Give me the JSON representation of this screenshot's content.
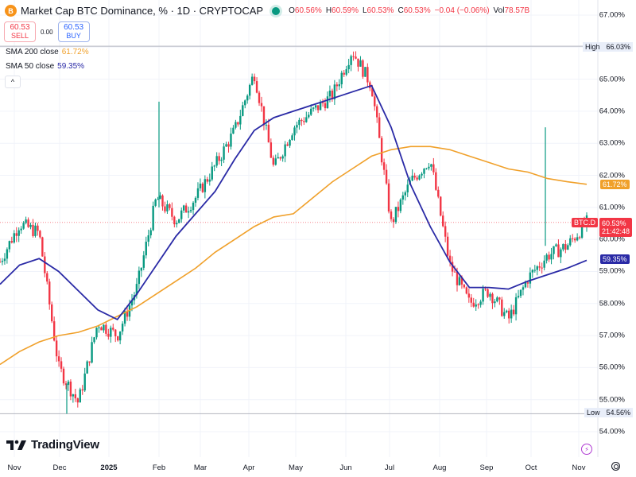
{
  "header": {
    "symbol_icon": "B",
    "title": "Market Cap BTC Dominance, % · 1D · CRYPTOCAP",
    "ohlc": {
      "o_label": "O",
      "o": "60.56%",
      "h_label": "H",
      "h": "60.59%",
      "l_label": "L",
      "l": "60.53%",
      "c_label": "C",
      "c": "60.53%",
      "change": "−0.04 (−0.06%)",
      "vol_label": "Vol",
      "vol": "78.57B"
    }
  },
  "trade": {
    "sell_price": "60.53",
    "sell_label": "SELL",
    "spread": "0.00",
    "buy_price": "60.53",
    "buy_label": "BUY"
  },
  "indicators": [
    {
      "label": "SMA 200 close",
      "value": "61.72%",
      "color": "#f0a02a"
    },
    {
      "label": "SMA 50 close",
      "value": "59.35%",
      "color": "#2a2aa6"
    }
  ],
  "collapse_icon": "^",
  "price_scale": {
    "ticks": [
      "67.00%",
      "66.00%",
      "65.00%",
      "64.00%",
      "63.00%",
      "62.00%",
      "61.00%",
      "60.00%",
      "59.00%",
      "58.00%",
      "57.00%",
      "56.00%",
      "55.00%",
      "54.00%"
    ],
    "high": {
      "label": "High",
      "value": "66.03%"
    },
    "low": {
      "label": "Low",
      "value": "54.56%"
    },
    "sma200_badge": "61.72%",
    "sma50_badge": "59.35%",
    "last_symbol": "BTC.D",
    "last_price": "60.53%",
    "countdown": "21:42:48"
  },
  "time_scale": {
    "ticks": [
      "Nov",
      "Dec",
      "2025",
      "Feb",
      "Mar",
      "Apr",
      "May",
      "Jun",
      "Jul",
      "Aug",
      "Sep",
      "Oct",
      "Nov"
    ]
  },
  "branding": {
    "logo_text": "TradingView"
  },
  "colors": {
    "up": "#089981",
    "down": "#f23645",
    "sma200": "#f0a02a",
    "sma50": "#2a2aa6",
    "grid": "#f0f3fa",
    "last_line": "#f23645"
  },
  "chart_data": {
    "type": "line",
    "title": "Market Cap BTC Dominance, % · 1D · CRYPTOCAP",
    "xlabel": "",
    "ylabel": "%",
    "ylim": [
      54.0,
      67.0
    ],
    "grid": true,
    "legend_position": "top-left",
    "x": [
      "2024-11-01",
      "2024-11-15",
      "2024-12-01",
      "2024-12-08",
      "2024-12-15",
      "2025-01-01",
      "2025-01-15",
      "2025-02-01",
      "2025-02-15",
      "2025-03-01",
      "2025-03-15",
      "2025-04-01",
      "2025-04-15",
      "2025-05-01",
      "2025-05-10",
      "2025-05-15",
      "2025-06-01",
      "2025-06-15",
      "2025-06-27",
      "2025-07-10",
      "2025-07-20",
      "2025-08-01",
      "2025-08-10",
      "2025-08-20",
      "2025-09-01",
      "2025-09-15",
      "2025-09-28",
      "2025-10-10",
      "2025-10-20",
      "2025-11-01",
      "2025-11-05"
    ],
    "series": [
      {
        "name": "BTC.D close",
        "values": [
          59.3,
          60.5,
          60.2,
          56.0,
          54.9,
          57.4,
          57.0,
          58.5,
          61.3,
          60.6,
          61.3,
          62.3,
          63.4,
          65.2,
          62.2,
          63.5,
          64.0,
          64.5,
          65.9,
          64.8,
          60.5,
          61.8,
          62.5,
          59.2,
          58.0,
          58.4,
          57.5,
          58.8,
          59.5,
          59.8,
          60.53
        ]
      },
      {
        "name": "SMA 200 close",
        "values": [
          56.1,
          56.5,
          56.8,
          57.0,
          57.1,
          57.3,
          57.6,
          57.9,
          58.3,
          58.7,
          59.1,
          59.6,
          60.0,
          60.4,
          60.7,
          60.8,
          61.3,
          61.8,
          62.2,
          62.6,
          62.8,
          62.9,
          62.9,
          62.8,
          62.6,
          62.4,
          62.2,
          62.1,
          61.9,
          61.8,
          61.72
        ]
      },
      {
        "name": "SMA 50 close",
        "values": [
          58.6,
          59.2,
          59.4,
          59.0,
          58.4,
          57.8,
          57.5,
          58.3,
          59.2,
          60.1,
          60.8,
          61.5,
          62.5,
          63.4,
          63.8,
          64.0,
          64.2,
          64.4,
          64.6,
          64.8,
          63.5,
          61.7,
          60.4,
          59.3,
          58.5,
          58.5,
          58.45,
          58.7,
          58.9,
          59.1,
          59.35
        ]
      }
    ],
    "annotations": {
      "high": 66.03,
      "low": 54.56,
      "last": 60.53,
      "wick_spike_feb": 64.3,
      "wick_spike_oct": 63.5
    }
  }
}
